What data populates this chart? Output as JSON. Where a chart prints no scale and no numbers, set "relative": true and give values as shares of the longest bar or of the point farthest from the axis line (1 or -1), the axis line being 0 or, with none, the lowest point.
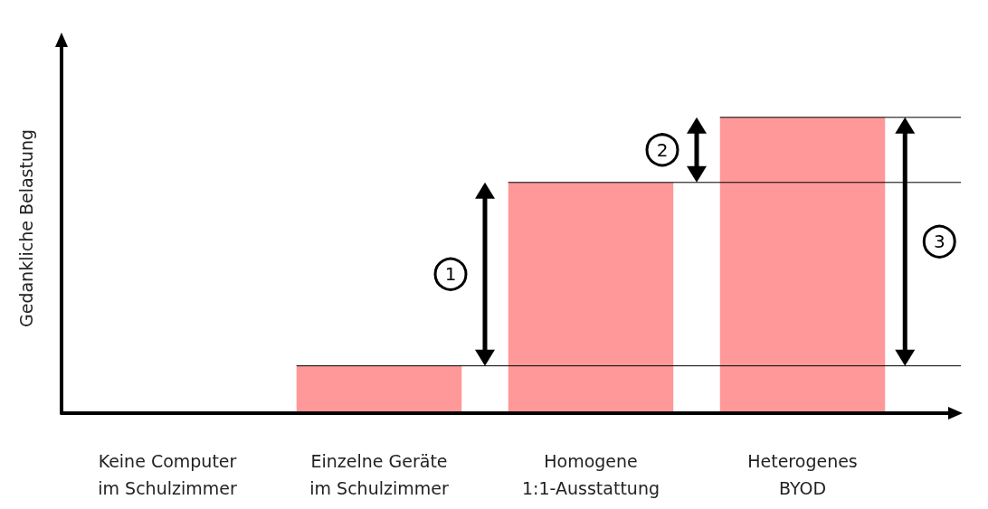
{
  "chart_data": {
    "type": "bar",
    "relative": true,
    "ylabel": "Gedankliche Belastung",
    "categories": [
      "Keine Computer\nim Schulzimmer",
      "Einzelne Geräte\nim Schulzimmer",
      "Homogene\n1:1-Ausstattung",
      "Heterogenes\nBYOD"
    ],
    "values": [
      0,
      0.16,
      0.78,
      1
    ],
    "color": "#ff9999",
    "grid": false,
    "ref_lines": [
      {
        "axis": "y",
        "value": 0.16,
        "color": "#000000"
      },
      {
        "axis": "y",
        "value": 0.78,
        "color": "#000000"
      },
      {
        "axis": "y",
        "value": 1,
        "color": "#000000"
      }
    ],
    "annotations": [
      "1",
      "2",
      "3"
    ]
  }
}
